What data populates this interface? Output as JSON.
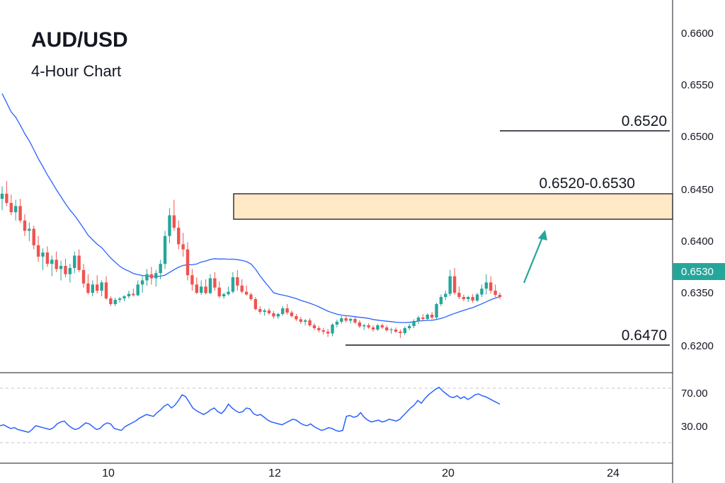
{
  "title": "AUD/USD",
  "subtitle": "4-Hour Chart",
  "colors": {
    "up": "#26a69a",
    "down": "#ef5350",
    "ma": "#2962ff",
    "rsi": "#2962ff",
    "zone": "#ffe9c7",
    "arrow": "#26a69a",
    "price_badge": "#26a69a"
  },
  "chart_data": {
    "type": "candlestick",
    "x_ticks": [
      "10",
      "12",
      "20",
      "24"
    ],
    "y_ticks": [
      "0.6600",
      "0.6550",
      "0.6500",
      "0.6450",
      "0.6400",
      "0.6350",
      "0.6200"
    ],
    "current_price_label": "0.6530",
    "annotations": {
      "resistance_line": "0.6520",
      "zone": "0.6520-0.6530",
      "support_line": "0.6470"
    },
    "rsi": {
      "ticks": [
        "70.00",
        "30.00"
      ],
      "values": [
        33,
        34,
        32,
        30,
        31,
        29,
        28,
        27,
        26,
        29,
        33,
        32,
        31,
        30,
        29,
        31,
        35,
        37,
        38,
        34,
        31,
        29,
        30,
        33,
        36,
        35,
        32,
        29,
        30,
        34,
        36,
        35,
        30,
        29,
        28,
        32,
        34,
        36,
        38,
        41,
        43,
        45,
        44,
        43,
        47,
        50,
        54,
        56,
        52,
        55,
        60,
        66,
        64,
        58,
        52,
        49,
        47,
        45,
        47,
        50,
        52,
        48,
        46,
        50,
        56,
        52,
        49,
        47,
        48,
        52,
        51,
        46,
        44,
        45,
        42,
        39,
        37,
        36,
        35,
        34,
        36,
        38,
        40,
        39,
        36,
        34,
        33,
        35,
        32,
        30,
        28,
        29,
        31,
        30,
        28,
        27,
        28,
        43,
        44,
        42,
        43,
        47,
        42,
        39,
        37,
        38,
        39,
        37,
        38,
        40,
        39,
        38,
        40,
        44,
        48,
        52,
        55,
        60,
        57,
        62,
        66,
        69,
        72,
        74,
        70,
        67,
        64,
        63,
        65,
        62,
        64,
        61,
        63,
        66,
        67,
        65,
        64,
        62,
        60,
        58,
        56
      ]
    },
    "candles": [
      [
        0.6441,
        0.6453,
        0.643,
        0.6446
      ],
      [
        0.6446,
        0.6458,
        0.6434,
        0.6437
      ],
      [
        0.6437,
        0.6445,
        0.6425,
        0.6428
      ],
      [
        0.6428,
        0.644,
        0.642,
        0.6434
      ],
      [
        0.6434,
        0.6441,
        0.6418,
        0.642
      ],
      [
        0.642,
        0.6426,
        0.6405,
        0.641
      ],
      [
        0.641,
        0.6418,
        0.64,
        0.6412
      ],
      [
        0.6412,
        0.6415,
        0.6392,
        0.6396
      ],
      [
        0.6396,
        0.6405,
        0.638,
        0.6385
      ],
      [
        0.6385,
        0.6393,
        0.6372,
        0.6389
      ],
      [
        0.6389,
        0.6395,
        0.6375,
        0.6378
      ],
      [
        0.6378,
        0.6386,
        0.6366,
        0.6382
      ],
      [
        0.6382,
        0.639,
        0.637,
        0.6373
      ],
      [
        0.6373,
        0.6381,
        0.6362,
        0.6376
      ],
      [
        0.6376,
        0.6383,
        0.6365,
        0.6368
      ],
      [
        0.6368,
        0.6378,
        0.636,
        0.6374
      ],
      [
        0.6374,
        0.639,
        0.6369,
        0.6386
      ],
      [
        0.6386,
        0.6392,
        0.637,
        0.6372
      ],
      [
        0.6372,
        0.6378,
        0.6355,
        0.6359
      ],
      [
        0.6359,
        0.6368,
        0.6345,
        0.635
      ],
      [
        0.635,
        0.6362,
        0.634,
        0.6358
      ],
      [
        0.6358,
        0.6367,
        0.6348,
        0.6352
      ],
      [
        0.6352,
        0.6362,
        0.634,
        0.636
      ],
      [
        0.636,
        0.6366,
        0.633,
        0.6334
      ],
      [
        0.6334,
        0.634,
        0.6312,
        0.6318
      ],
      [
        0.6318,
        0.6336,
        0.6312,
        0.633
      ],
      [
        0.633,
        0.6338,
        0.6322,
        0.6334
      ],
      [
        0.6334,
        0.6343,
        0.6326,
        0.634
      ],
      [
        0.634,
        0.6352,
        0.6334,
        0.6347
      ],
      [
        0.6347,
        0.6354,
        0.6339,
        0.6343
      ],
      [
        0.6343,
        0.6362,
        0.634,
        0.6358
      ],
      [
        0.6358,
        0.6366,
        0.635,
        0.6362
      ],
      [
        0.6362,
        0.6373,
        0.6357,
        0.6368
      ],
      [
        0.6368,
        0.6375,
        0.6358,
        0.6364
      ],
      [
        0.6364,
        0.6372,
        0.6356,
        0.6369
      ],
      [
        0.6369,
        0.6382,
        0.6363,
        0.6378
      ],
      [
        0.6378,
        0.641,
        0.6373,
        0.6405
      ],
      [
        0.6405,
        0.6432,
        0.6398,
        0.6425
      ],
      [
        0.6425,
        0.644,
        0.641,
        0.6413
      ],
      [
        0.6413,
        0.642,
        0.6392,
        0.6397
      ],
      [
        0.6397,
        0.6408,
        0.6385,
        0.6392
      ],
      [
        0.6392,
        0.6399,
        0.6362,
        0.6367
      ],
      [
        0.6367,
        0.6373,
        0.6352,
        0.6358
      ],
      [
        0.6358,
        0.6365,
        0.6346,
        0.635
      ],
      [
        0.635,
        0.6362,
        0.6344,
        0.6356
      ],
      [
        0.6356,
        0.6363,
        0.6345,
        0.6349
      ],
      [
        0.6349,
        0.6368,
        0.6346,
        0.6364
      ],
      [
        0.6364,
        0.637,
        0.6352,
        0.6355
      ],
      [
        0.6355,
        0.6361,
        0.6335,
        0.634
      ],
      [
        0.634,
        0.635,
        0.6333,
        0.6346
      ],
      [
        0.6346,
        0.6356,
        0.6342,
        0.6351
      ],
      [
        0.6351,
        0.637,
        0.6348,
        0.6365
      ],
      [
        0.6365,
        0.6372,
        0.6352,
        0.6357
      ],
      [
        0.6357,
        0.6363,
        0.6348,
        0.6351
      ],
      [
        0.6351,
        0.6357,
        0.6342,
        0.6345
      ],
      [
        0.6345,
        0.635,
        0.6328,
        0.6332
      ],
      [
        0.6332,
        0.6338,
        0.63,
        0.6304
      ],
      [
        0.6304,
        0.6312,
        0.629,
        0.6296
      ],
      [
        0.6296,
        0.6305,
        0.6285,
        0.63
      ],
      [
        0.63,
        0.6306,
        0.6288,
        0.6292
      ],
      [
        0.6292,
        0.6298,
        0.6277,
        0.6283
      ],
      [
        0.6283,
        0.6293,
        0.6276,
        0.629
      ],
      [
        0.629,
        0.6312,
        0.6285,
        0.6306
      ],
      [
        0.6306,
        0.6318,
        0.6288,
        0.6294
      ],
      [
        0.6294,
        0.63,
        0.628,
        0.6284
      ],
      [
        0.6284,
        0.629,
        0.627,
        0.6275
      ],
      [
        0.6275,
        0.6282,
        0.6262,
        0.6268
      ],
      [
        0.6268,
        0.6276,
        0.6258,
        0.6272
      ],
      [
        0.6272,
        0.6278,
        0.6254,
        0.6258
      ],
      [
        0.6258,
        0.6264,
        0.6245,
        0.625
      ],
      [
        0.625,
        0.6256,
        0.6238,
        0.6244
      ],
      [
        0.6244,
        0.6251,
        0.6232,
        0.624
      ],
      [
        0.624,
        0.6248,
        0.6225,
        0.6235
      ],
      [
        0.6235,
        0.6264,
        0.6227,
        0.626
      ],
      [
        0.626,
        0.6274,
        0.6252,
        0.6268
      ],
      [
        0.6268,
        0.6284,
        0.6262,
        0.6278
      ],
      [
        0.6278,
        0.6285,
        0.6266,
        0.6271
      ],
      [
        0.6271,
        0.628,
        0.6263,
        0.6276
      ],
      [
        0.6276,
        0.6282,
        0.6262,
        0.6266
      ],
      [
        0.6266,
        0.6272,
        0.625,
        0.6255
      ],
      [
        0.6255,
        0.6262,
        0.6245,
        0.6258
      ],
      [
        0.6258,
        0.6264,
        0.6248,
        0.6252
      ],
      [
        0.6252,
        0.6258,
        0.624,
        0.6246
      ],
      [
        0.6246,
        0.6262,
        0.6242,
        0.6258
      ],
      [
        0.6258,
        0.6263,
        0.6248,
        0.6252
      ],
      [
        0.6252,
        0.6258,
        0.624,
        0.6244
      ],
      [
        0.6244,
        0.6251,
        0.6234,
        0.6246
      ],
      [
        0.6246,
        0.6252,
        0.6236,
        0.624
      ],
      [
        0.624,
        0.6246,
        0.6222,
        0.6236
      ],
      [
        0.6236,
        0.6255,
        0.623,
        0.625
      ],
      [
        0.625,
        0.6262,
        0.6244,
        0.6256
      ],
      [
        0.6256,
        0.6275,
        0.625,
        0.627
      ],
      [
        0.627,
        0.6285,
        0.6262,
        0.628
      ],
      [
        0.628,
        0.629,
        0.627,
        0.6276
      ],
      [
        0.6276,
        0.6292,
        0.6272,
        0.6288
      ],
      [
        0.6288,
        0.6296,
        0.6275,
        0.628
      ],
      [
        0.628,
        0.6322,
        0.6276,
        0.6318
      ],
      [
        0.6318,
        0.6345,
        0.6312,
        0.6338
      ],
      [
        0.6338,
        0.6352,
        0.633,
        0.6347
      ],
      [
        0.6347,
        0.6372,
        0.634,
        0.6366
      ],
      [
        0.6366,
        0.6374,
        0.6344,
        0.635
      ],
      [
        0.635,
        0.6356,
        0.6332,
        0.6338
      ],
      [
        0.6338,
        0.6345,
        0.6326,
        0.6332
      ],
      [
        0.6332,
        0.6342,
        0.6324,
        0.6338
      ],
      [
        0.6338,
        0.6346,
        0.6322,
        0.6328
      ],
      [
        0.6328,
        0.635,
        0.6324,
        0.6345
      ],
      [
        0.6345,
        0.6358,
        0.6338,
        0.6354
      ],
      [
        0.6354,
        0.6368,
        0.6345,
        0.636
      ],
      [
        0.636,
        0.6366,
        0.6348,
        0.6352
      ],
      [
        0.6352,
        0.6358,
        0.6338,
        0.6344
      ],
      [
        0.6344,
        0.635,
        0.6332,
        0.6338
      ]
    ]
  }
}
